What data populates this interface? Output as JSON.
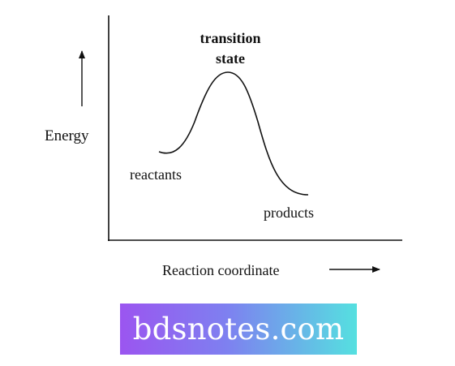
{
  "diagram": {
    "energy_label": "Energy",
    "reaction_coordinate_label": "Reaction coordinate",
    "transition_state_label_line1": "transition",
    "transition_state_label_line2": "state",
    "reactants_label": "reactants",
    "products_label": "products",
    "line_color": "#111111"
  },
  "watermark": {
    "text": "bdsnotes.com",
    "gradient_start": "#9b55f0",
    "gradient_end": "#55e0e0"
  }
}
